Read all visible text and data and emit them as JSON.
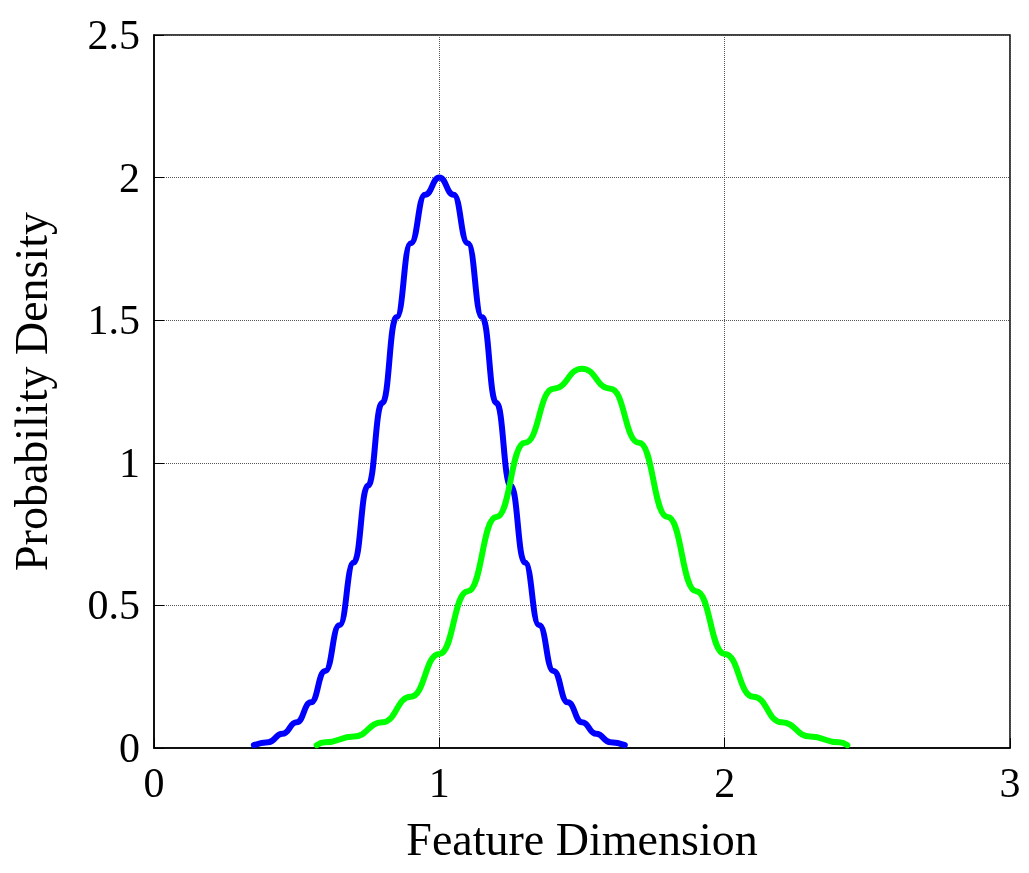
{
  "chart_data": {
    "type": "line",
    "xlabel": "Feature Dimension",
    "ylabel": "Probability Density",
    "xlim": [
      0,
      3
    ],
    "xticks": [
      0,
      1,
      2,
      3
    ],
    "ylim": [
      0,
      2.5
    ],
    "yticks": [
      0,
      0.5,
      1,
      1.5,
      2,
      2.5
    ],
    "grid": true,
    "line_style": "solid",
    "marker": "none",
    "series": [
      {
        "color": "#0000ff",
        "x": [
          0.35,
          0.4,
          0.45,
          0.5,
          0.55,
          0.6,
          0.65,
          0.7,
          0.75,
          0.8,
          0.85,
          0.9,
          0.95,
          1,
          1.05,
          1.1,
          1.15,
          1.2,
          1.25,
          1.3,
          1.35,
          1.4,
          1.45,
          1.5,
          1.55,
          1.6,
          1.65
        ],
        "values": [
          0.01,
          0.02,
          0.05,
          0.09,
          0.16,
          0.27,
          0.43,
          0.65,
          0.92,
          1.21,
          1.51,
          1.77,
          1.94,
          2,
          1.94,
          1.77,
          1.51,
          1.21,
          0.92,
          0.65,
          0.43,
          0.27,
          0.16,
          0.09,
          0.05,
          0.02,
          0.01
        ]
      },
      {
        "color": "#00ff00",
        "x": [
          0.57,
          0.6,
          0.7,
          0.8,
          0.9,
          1,
          1.1,
          1.2,
          1.3,
          1.4,
          1.5,
          1.6,
          1.7,
          1.8,
          1.9,
          2,
          2.1,
          2.2,
          2.3,
          2.4,
          2.43
        ],
        "values": [
          0.01,
          0.02,
          0.04,
          0.09,
          0.18,
          0.33,
          0.55,
          0.81,
          1.07,
          1.26,
          1.33,
          1.26,
          1.07,
          0.81,
          0.55,
          0.33,
          0.18,
          0.09,
          0.04,
          0.02,
          0.01
        ]
      }
    ]
  }
}
